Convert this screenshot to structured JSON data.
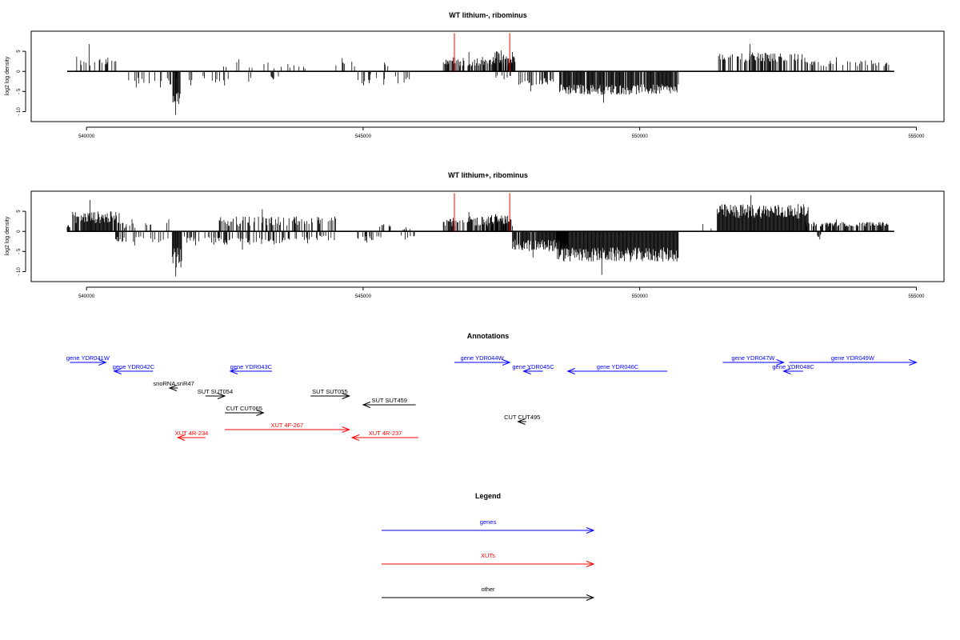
{
  "chart_data": [
    {
      "type": "bar",
      "title": "WT lithium-, ribominus",
      "ylabel": "log2 log density",
      "xlabel": "",
      "xlim": [
        539000,
        555500
      ],
      "ylim": [
        -12.5,
        10
      ],
      "x_ticks": [
        540000,
        545000,
        550000,
        555000
      ],
      "x_tick_labels": [
        "540000",
        "545000",
        "550000",
        "555000"
      ],
      "y_ticks": [
        -10,
        -5,
        0,
        5
      ],
      "y_tick_labels": [
        "- 10",
        "- 5",
        "0",
        "5"
      ],
      "baseline": {
        "x": [
          539650,
          554600
        ],
        "y": 0
      },
      "highlight_positions": [
        546650,
        547650
      ],
      "highlight_height": 9.5,
      "signal_regions": [
        {
          "x": [
            539750,
            540550
          ],
          "strand": "+",
          "density": 0.3,
          "mean": 2.5,
          "spread": 1.5,
          "max": 6.8
        },
        {
          "x": [
            540750,
            541150
          ],
          "strand": "-",
          "density": 0.25,
          "mean": -2.5,
          "spread": 1.0,
          "max": -4
        },
        {
          "x": [
            541150,
            541650
          ],
          "strand": "-",
          "density": 0.2,
          "mean": -2.5,
          "spread": 1.0,
          "max": -4
        },
        {
          "x": [
            541560,
            541700
          ],
          "strand": "-",
          "density": 1.0,
          "mean": -6.5,
          "spread": 2.2,
          "max": -10.8
        },
        {
          "x": [
            541700,
            542200
          ],
          "strand": "-",
          "density": 0.1,
          "mean": -2.0,
          "spread": 1.0,
          "max": -3.5
        },
        {
          "x": [
            542200,
            543700
          ],
          "strand": "+",
          "density": 0.08,
          "mean": 1.5,
          "spread": 0.8,
          "max": 3.0
        },
        {
          "x": [
            542200,
            543000
          ],
          "strand": "-",
          "density": 0.1,
          "mean": -2.0,
          "spread": 0.8,
          "max": -3.5
        },
        {
          "x": [
            543600,
            544000
          ],
          "strand": "+",
          "density": 0.08,
          "mean": 0.8,
          "spread": 0.4,
          "max": 1.5
        },
        {
          "x": [
            543300,
            543500
          ],
          "strand": "-",
          "density": 0.15,
          "mean": -1.5,
          "spread": 0.4,
          "max": -2.0
        },
        {
          "x": [
            544400,
            545000
          ],
          "strand": "+",
          "density": 0.18,
          "mean": 1.8,
          "spread": 0.8,
          "max": 3.3
        },
        {
          "x": [
            545350,
            545450
          ],
          "strand": "+",
          "density": 0.2,
          "mean": 1.5,
          "spread": 0.5,
          "max": 2.2
        },
        {
          "x": [
            545000,
            545300
          ],
          "strand": "-",
          "density": 0.12,
          "mean": -1.5,
          "spread": 0.8,
          "max": -3.0
        },
        {
          "x": [
            544750,
            545450
          ],
          "strand": "-",
          "density": 0.15,
          "mean": -2.5,
          "spread": 1.0,
          "max": -3.5
        },
        {
          "x": [
            545500,
            545850
          ],
          "strand": "-",
          "density": 0.15,
          "mean": -2.0,
          "spread": 0.8,
          "max": -3.0
        },
        {
          "x": [
            546450,
            547700
          ],
          "strand": "+",
          "density": 0.6,
          "mean": 2.5,
          "spread": 1.2,
          "max": 4.8
        },
        {
          "x": [
            547350,
            547750
          ],
          "strand": "+",
          "density": 0.9,
          "mean": 3.5,
          "spread": 1.5,
          "max": 5.2
        },
        {
          "x": [
            547400,
            547800
          ],
          "strand": "-",
          "density": 0.2,
          "mean": -1.2,
          "spread": 0.6,
          "max": -2.0
        },
        {
          "x": [
            547780,
            548450
          ],
          "strand": "-",
          "density": 0.5,
          "mean": -2.5,
          "spread": 1.0,
          "max": -5.0
        },
        {
          "x": [
            548550,
            550700
          ],
          "strand": "-",
          "density": 0.9,
          "mean": -4.5,
          "spread": 1.3,
          "max": -7.8
        },
        {
          "x": [
            551400,
            553000
          ],
          "strand": "+",
          "density": 0.5,
          "mean": 3.5,
          "spread": 1.2,
          "max": 6.8
        },
        {
          "x": [
            553000,
            554500
          ],
          "strand": "+",
          "density": 0.25,
          "mean": 2.0,
          "spread": 0.8,
          "max": 3.5
        }
      ]
    },
    {
      "type": "bar",
      "title": "WT lithium+, ribominus",
      "ylabel": "log2 log density",
      "xlabel": "",
      "xlim": [
        539000,
        555500
      ],
      "ylim": [
        -12.5,
        10
      ],
      "x_ticks": [
        540000,
        545000,
        550000,
        555000
      ],
      "x_tick_labels": [
        "540000",
        "545000",
        "550000",
        "555000"
      ],
      "y_ticks": [
        -10,
        -5,
        0,
        5
      ],
      "y_tick_labels": [
        "- 10",
        "- 5",
        "0",
        "5"
      ],
      "baseline": {
        "x": [
          539650,
          554600
        ],
        "y": 0
      },
      "highlight_positions": [
        546650,
        547650
      ],
      "highlight_height": 9.5,
      "signal_regions": [
        {
          "x": [
            539650,
            539700
          ],
          "strand": "+",
          "density": 1.0,
          "mean": 1.2,
          "spread": 0.3,
          "max": 1.5
        },
        {
          "x": [
            539750,
            540600
          ],
          "strand": "+",
          "density": 0.9,
          "mean": 3.5,
          "spread": 1.5,
          "max": 7.8
        },
        {
          "x": [
            540600,
            541200
          ],
          "strand": "+",
          "density": 0.25,
          "mean": 1.5,
          "spread": 0.8,
          "max": 3.0
        },
        {
          "x": [
            540500,
            541500
          ],
          "strand": "-",
          "density": 0.25,
          "mean": -2.0,
          "spread": 0.8,
          "max": -3.5
        },
        {
          "x": [
            541450,
            541550
          ],
          "strand": "+",
          "density": 0.3,
          "mean": 2.0,
          "spread": 0.8,
          "max": 3.0
        },
        {
          "x": [
            541550,
            541720
          ],
          "strand": "-",
          "density": 1.0,
          "mean": -6.5,
          "spread": 2.5,
          "max": -11.2
        },
        {
          "x": [
            541720,
            542400
          ],
          "strand": "-",
          "density": 0.3,
          "mean": -2.0,
          "spread": 0.8,
          "max": -3.5
        },
        {
          "x": [
            542400,
            544500
          ],
          "strand": "+",
          "density": 0.45,
          "mean": 2.5,
          "spread": 1.2,
          "max": 5.5
        },
        {
          "x": [
            542300,
            543700
          ],
          "strand": "-",
          "density": 0.4,
          "mean": -2.5,
          "spread": 1.0,
          "max": -4.5
        },
        {
          "x": [
            543700,
            544500
          ],
          "strand": "-",
          "density": 0.25,
          "mean": -1.8,
          "spread": 0.8,
          "max": -3.0
        },
        {
          "x": [
            544900,
            545350
          ],
          "strand": "-",
          "density": 0.45,
          "mean": -1.8,
          "spread": 0.6,
          "max": -2.8
        },
        {
          "x": [
            545300,
            545500
          ],
          "strand": "+",
          "density": 0.3,
          "mean": 1.2,
          "spread": 0.5,
          "max": 1.8
        },
        {
          "x": [
            545650,
            545950
          ],
          "strand": "-",
          "density": 0.35,
          "mean": -1.2,
          "spread": 0.5,
          "max": -2.0
        },
        {
          "x": [
            545700,
            545900
          ],
          "strand": "+",
          "density": 0.25,
          "mean": 0.6,
          "spread": 0.2,
          "max": 1.0
        },
        {
          "x": [
            546450,
            547700
          ],
          "strand": "+",
          "density": 0.6,
          "mean": 2.5,
          "spread": 1.2,
          "max": 4.8
        },
        {
          "x": [
            547250,
            547650
          ],
          "strand": "+",
          "density": 0.9,
          "mean": 3.0,
          "spread": 1.2,
          "max": 4.3
        },
        {
          "x": [
            547700,
            548700
          ],
          "strand": "-",
          "density": 0.95,
          "mean": -3.5,
          "spread": 1.5,
          "max": -6.5
        },
        {
          "x": [
            548500,
            550700
          ],
          "strand": "-",
          "density": 1.0,
          "mean": -5.8,
          "spread": 1.8,
          "max": -10.8
        },
        {
          "x": [
            551050,
            551300
          ],
          "strand": "+",
          "density": 0.25,
          "mean": 1.0,
          "spread": 0.5,
          "max": 1.8
        },
        {
          "x": [
            551400,
            553050
          ],
          "strand": "+",
          "density": 1.0,
          "mean": 5.0,
          "spread": 1.8,
          "max": 9.0
        },
        {
          "x": [
            553000,
            554500
          ],
          "strand": "+",
          "density": 0.7,
          "mean": 1.8,
          "spread": 0.6,
          "max": 3.0
        },
        {
          "x": [
            553200,
            553350
          ],
          "strand": "-",
          "density": 0.3,
          "mean": -1.0,
          "spread": 0.5,
          "max": -2.0
        }
      ]
    }
  ],
  "annotations": {
    "title": "Annotations",
    "features": [
      {
        "label": "gene YDR041W",
        "start": 539700,
        "end": 540350,
        "strand": "+",
        "track": 0,
        "color": "#0000ff"
      },
      {
        "label": "gene YDR042C",
        "start": 540500,
        "end": 541200,
        "strand": "-",
        "track": 1,
        "color": "#0000ff"
      },
      {
        "label": "gene YDR043C",
        "start": 542600,
        "end": 543350,
        "strand": "-",
        "track": 1,
        "color": "#0000ff"
      },
      {
        "label": "gene YDR044W",
        "start": 546650,
        "end": 547650,
        "strand": "+",
        "track": 0,
        "color": "#0000ff"
      },
      {
        "label": "gene YDR045C",
        "start": 547900,
        "end": 548250,
        "strand": "-",
        "track": 1,
        "color": "#0000ff"
      },
      {
        "label": "gene YDR046C",
        "start": 548700,
        "end": 550500,
        "strand": "-",
        "track": 1,
        "color": "#0000ff"
      },
      {
        "label": "gene YDR047W",
        "start": 551500,
        "end": 552600,
        "strand": "+",
        "track": 0,
        "color": "#0000ff"
      },
      {
        "label": "gene YDR048C",
        "start": 552600,
        "end": 552950,
        "strand": "-",
        "track": 1,
        "color": "#0000ff"
      },
      {
        "label": "gene YDR049W",
        "start": 552700,
        "end": 555000,
        "strand": "+",
        "track": 0,
        "color": "#0000ff"
      },
      {
        "label": "snoRNA snR47",
        "start": 541500,
        "end": 541650,
        "strand": "-",
        "track": 2,
        "color": "#000000"
      },
      {
        "label": "SUT SUT054",
        "start": 542150,
        "end": 542500,
        "strand": "+",
        "track": 3,
        "color": "#000000"
      },
      {
        "label": "SUT SUT055",
        "start": 544050,
        "end": 544750,
        "strand": "+",
        "track": 3,
        "color": "#000000"
      },
      {
        "label": "SUT SUT459",
        "start": 545000,
        "end": 545950,
        "strand": "-",
        "track": 4,
        "color": "#000000"
      },
      {
        "label": "CUT CUT065",
        "start": 542500,
        "end": 543200,
        "strand": "+",
        "track": 5,
        "color": "#000000"
      },
      {
        "label": "CUT CUT495",
        "start": 547800,
        "end": 547950,
        "strand": "-",
        "track": 6,
        "color": "#000000"
      },
      {
        "label": "XUT 4F-267",
        "start": 542500,
        "end": 544750,
        "strand": "+",
        "track": 7,
        "color": "#ff0000"
      },
      {
        "label": "XUT 4R-234",
        "start": 541650,
        "end": 542150,
        "strand": "-",
        "track": 8,
        "color": "#ff0000"
      },
      {
        "label": "XUT 4R-237",
        "start": 544800,
        "end": 546000,
        "strand": "-",
        "track": 8,
        "color": "#ff0000"
      }
    ]
  },
  "legend": {
    "title": "Legend",
    "items": [
      {
        "label": "genes",
        "color": "#0000ff"
      },
      {
        "label": "XUTs",
        "color": "#ff0000"
      },
      {
        "label": "other",
        "color": "#000000"
      }
    ]
  }
}
